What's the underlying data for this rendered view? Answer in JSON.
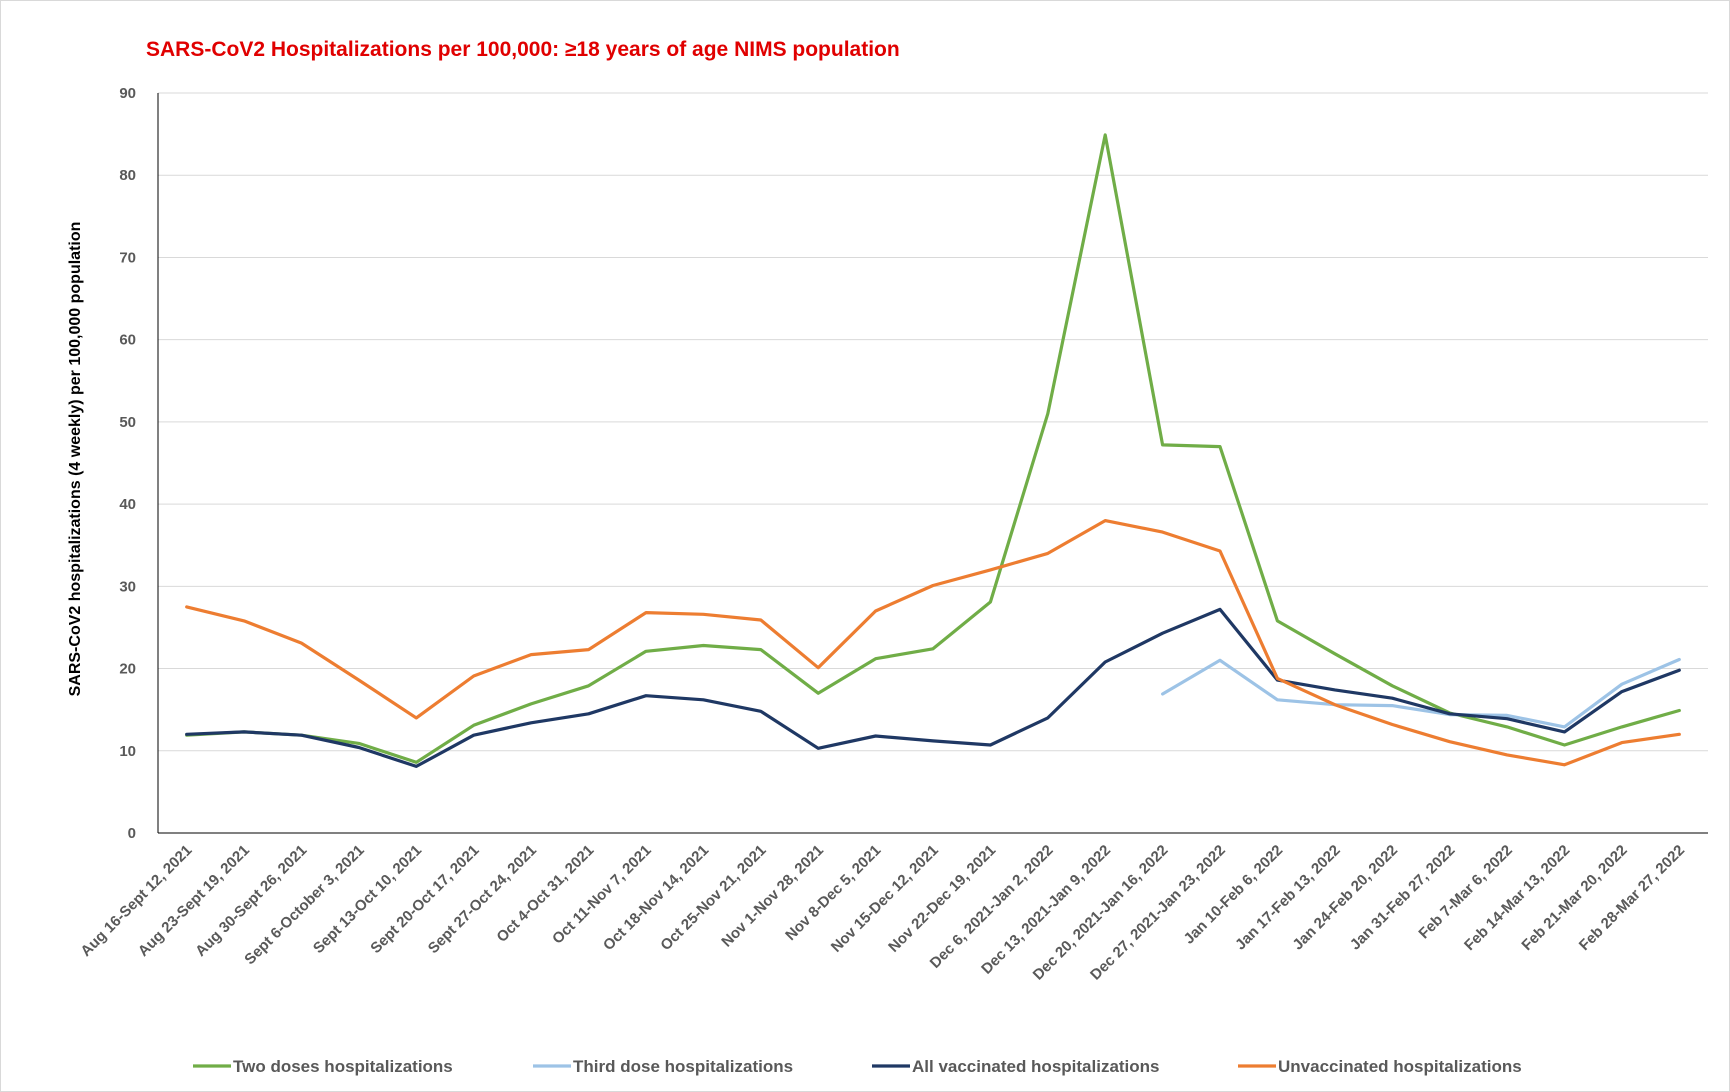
{
  "chart_data": {
    "type": "line",
    "title": "SARS-CoV2 Hospitalizations per 100,000: ≥18 years of age NIMS population",
    "xlabel": "",
    "ylabel": "SARS-CoV2 hospitalizations (4 weekly) per 100,000 population",
    "ylim": [
      0,
      90
    ],
    "yticks": [
      0,
      10,
      20,
      30,
      40,
      50,
      60,
      70,
      80,
      90
    ],
    "grid": true,
    "legend_position": "bottom",
    "categories": [
      "Aug 16-Sept 12, 2021",
      "Aug 23-Sept 19, 2021",
      "Aug 30-Sept 26, 2021",
      "Sept 6-October 3, 2021",
      "Sept 13-Oct 10, 2021",
      "Sept 20-Oct 17, 2021",
      "Sept 27-Oct 24, 2021",
      "Oct 4-Oct 31, 2021",
      "Oct 11-Nov 7, 2021",
      "Oct 18-Nov 14, 2021",
      "Oct 25-Nov 21, 2021",
      "Nov 1-Nov 28, 2021",
      "Nov 8-Dec 5, 2021",
      "Nov 15-Dec 12, 2021",
      "Nov 22-Dec 19, 2021",
      "Dec 6, 2021-Jan 2, 2022",
      "Dec 13, 2021-Jan 9, 2022",
      "Dec 20, 2021-Jan 16, 2022",
      "Dec 27, 2021-Jan 23, 2022",
      "Jan 10-Feb 6, 2022",
      "Jan 17-Feb 13, 2022",
      "Jan 24-Feb 20, 2022",
      "Jan 31-Feb 27, 2022",
      "Feb 7-Mar 6, 2022",
      "Feb 14-Mar 13, 2022",
      "Feb 21-Mar 20, 2022",
      "Feb 28-Mar 27, 2022"
    ],
    "series": [
      {
        "name": "Two doses hospitalizations",
        "color": "#70ad47",
        "values": [
          11.9,
          12.3,
          11.9,
          10.9,
          8.6,
          13.1,
          15.7,
          17.9,
          22.1,
          22.8,
          22.3,
          17.0,
          21.2,
          22.4,
          28.1,
          51.0,
          84.9,
          47.2,
          47.0,
          25.8,
          21.8,
          17.9,
          14.6,
          12.9,
          10.7,
          12.9,
          14.9
        ]
      },
      {
        "name": "Third dose hospitalizations",
        "color": "#9dc3e6",
        "values": [
          null,
          null,
          null,
          null,
          null,
          null,
          null,
          null,
          null,
          null,
          null,
          null,
          null,
          null,
          null,
          null,
          null,
          16.9,
          21.0,
          16.2,
          15.6,
          15.5,
          14.4,
          14.3,
          12.9,
          18.1,
          21.1
        ]
      },
      {
        "name": "All vaccinated hospitalizations",
        "color": "#1f3864",
        "values": [
          12.0,
          12.3,
          11.9,
          10.4,
          8.1,
          11.9,
          13.4,
          14.5,
          16.7,
          16.2,
          14.8,
          10.3,
          11.8,
          11.2,
          10.7,
          14.0,
          20.8,
          24.3,
          27.2,
          18.6,
          17.4,
          16.4,
          14.5,
          13.9,
          12.3,
          17.2,
          19.8
        ]
      },
      {
        "name": "Unvaccinated hospitalizations",
        "color": "#ed7d31",
        "values": [
          27.5,
          25.8,
          23.1,
          18.6,
          14.0,
          19.1,
          21.7,
          22.3,
          26.8,
          26.6,
          25.9,
          20.1,
          27.0,
          30.1,
          32.0,
          34.0,
          38.0,
          36.6,
          34.3,
          18.8,
          15.6,
          13.2,
          11.1,
          9.5,
          8.3,
          11.0,
          12.0
        ]
      }
    ]
  },
  "colors": {
    "title": "#e00000",
    "grid": "#d9d9d9",
    "axis": "#000000",
    "tick_text": "#595959"
  }
}
